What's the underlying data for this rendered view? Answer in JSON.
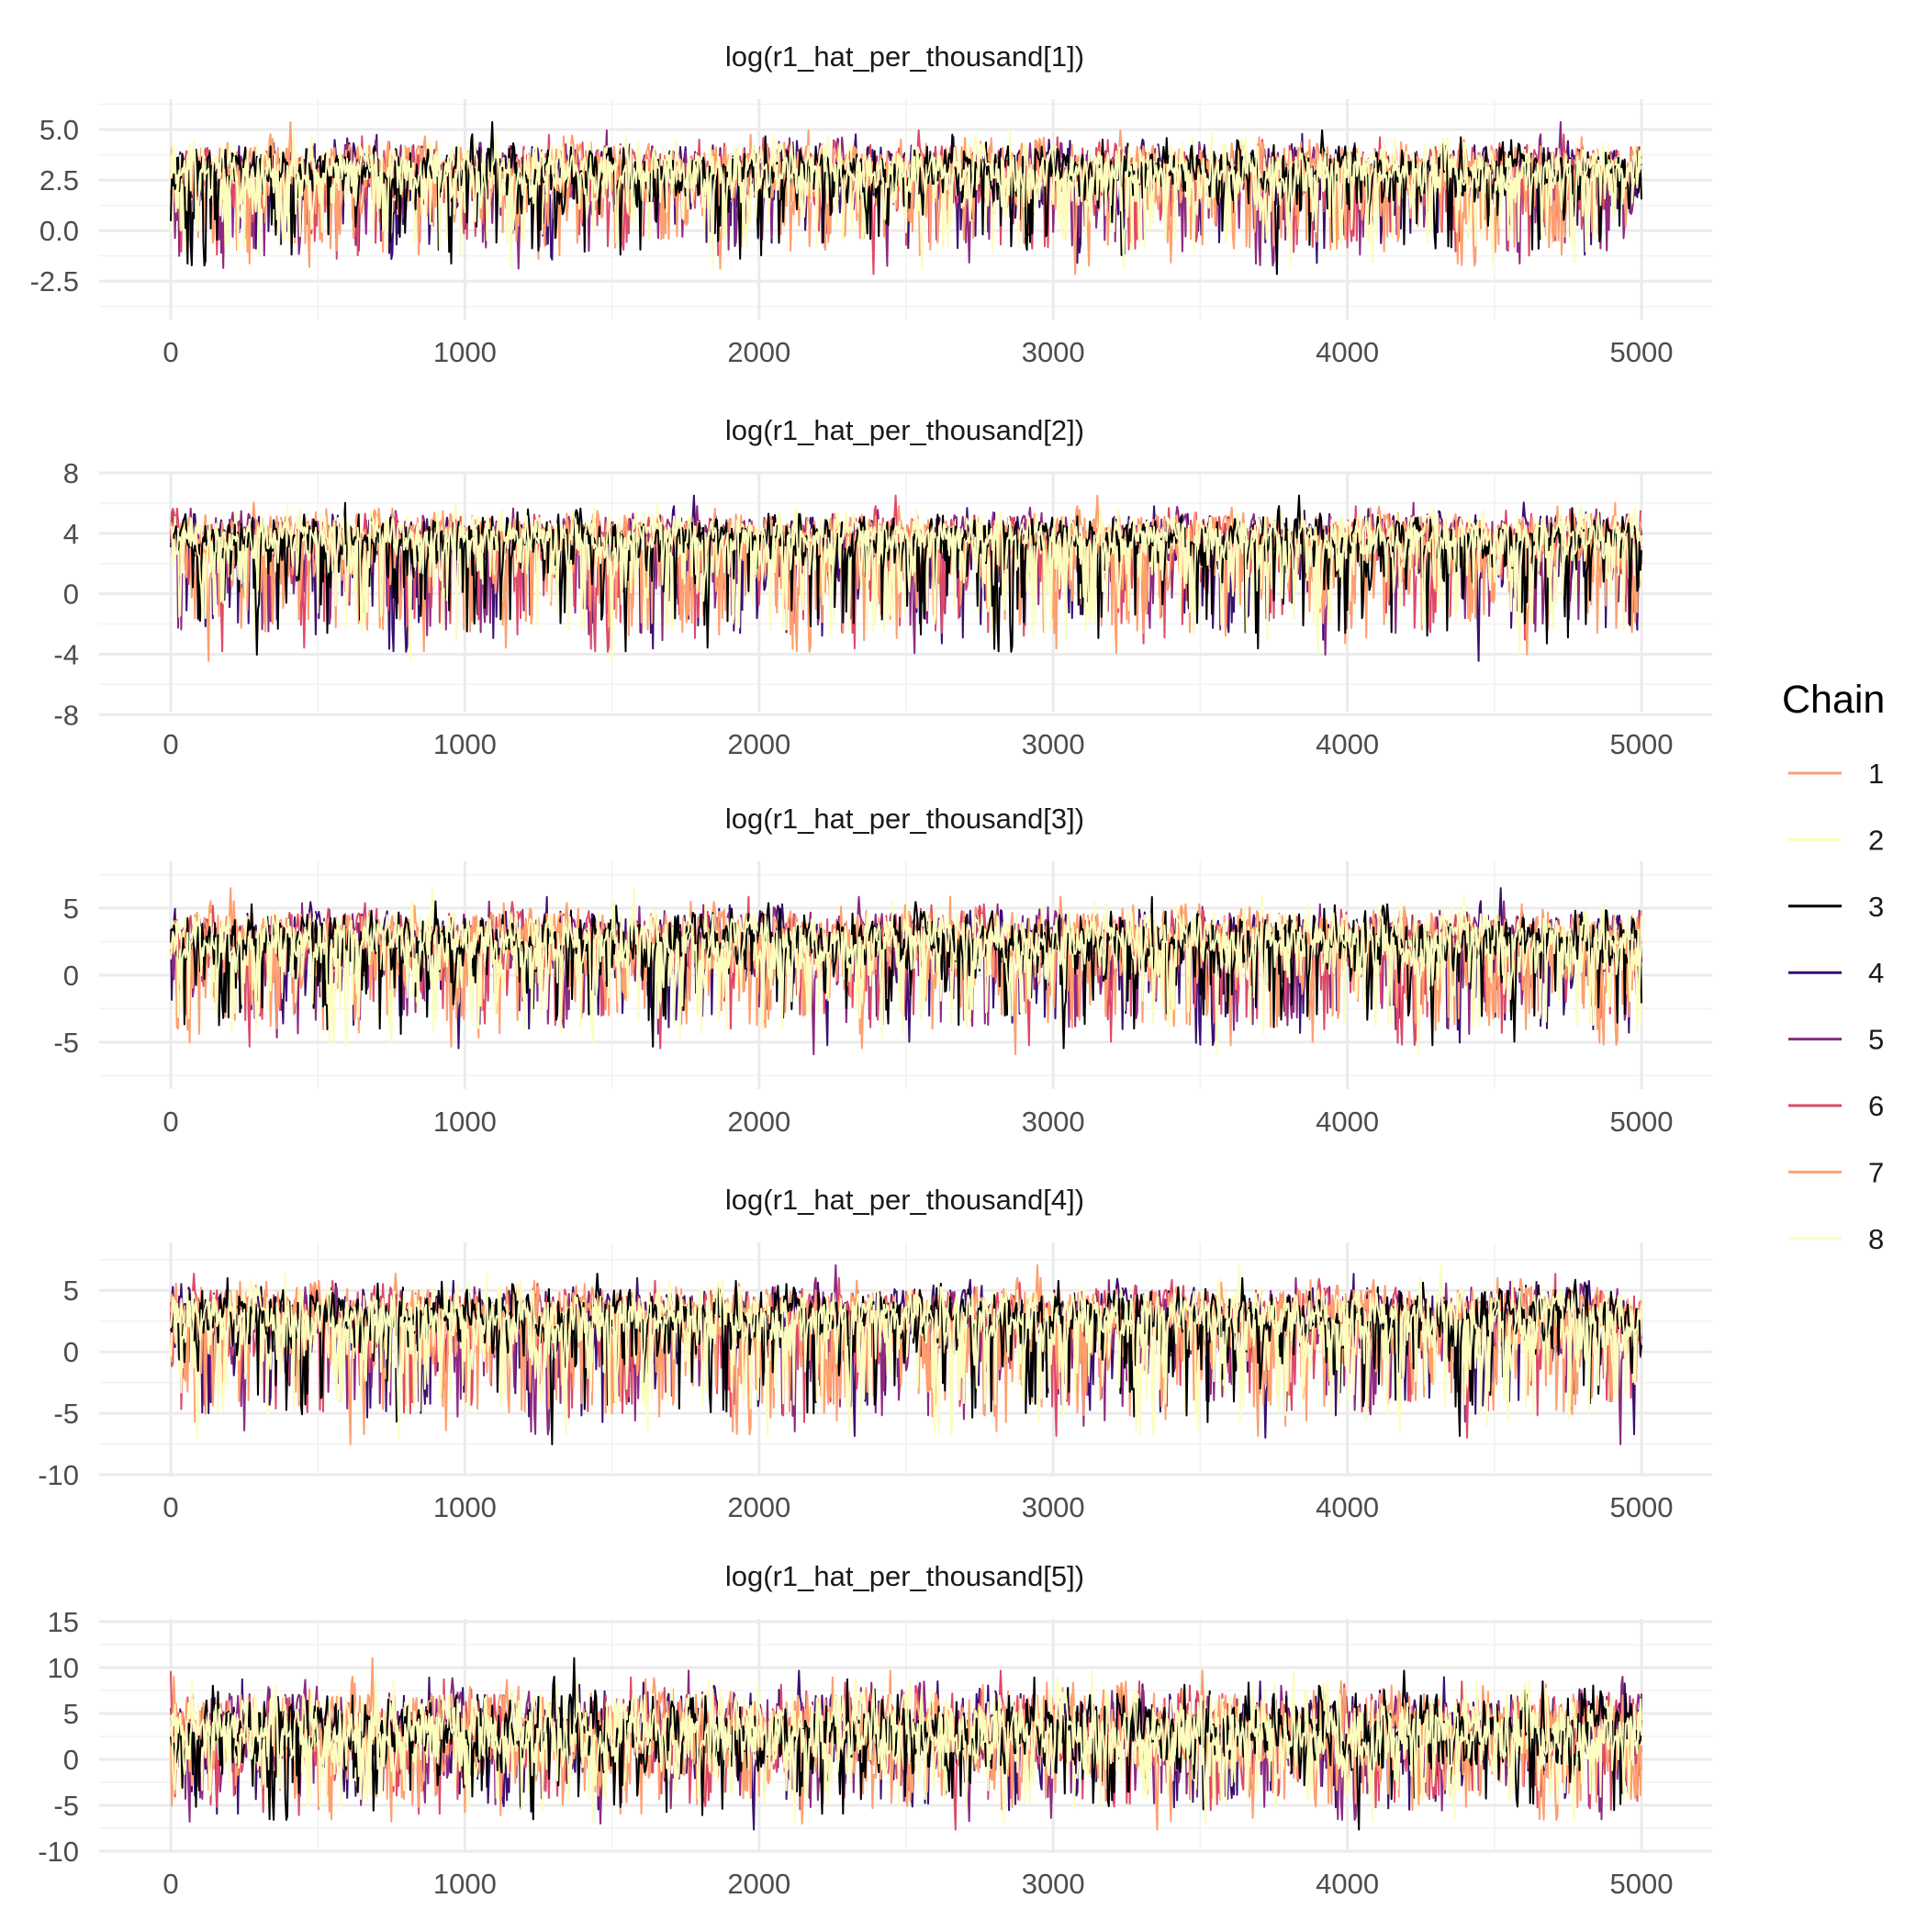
{
  "chart_data": {
    "type": "line",
    "x_ticks": [
      0,
      1000,
      2000,
      3000,
      4000,
      5000
    ],
    "xlim": [
      0,
      5000
    ],
    "iterations": 5000,
    "grid": true,
    "legend": {
      "title": "Chain",
      "placement": "right",
      "entries": [
        {
          "label": "1",
          "color": "#FE9F6D"
        },
        {
          "label": "2",
          "color": "#FCFDBF"
        },
        {
          "label": "3",
          "color": "#000004"
        },
        {
          "label": "4",
          "color": "#3B0F70"
        },
        {
          "label": "5",
          "color": "#8C2981"
        },
        {
          "label": "6",
          "color": "#DE4968"
        },
        {
          "label": "7",
          "color": "#FE9F6D"
        },
        {
          "label": "8",
          "color": "#FCFDBF"
        }
      ]
    },
    "panels": [
      {
        "title": "log(r1_hat_per_thousand[1])",
        "ylim": [
          -4.4,
          6.5
        ],
        "y_ticks": [
          -2.5,
          0.0,
          2.5,
          5.0
        ],
        "y_tick_labels": [
          "-2.5",
          "0.0",
          "2.5",
          "5.0"
        ],
        "center": 3.0,
        "upper": 5.8,
        "lower": -3.1
      },
      {
        "title": "log(r1_hat_per_thousand[2])",
        "ylim": [
          -7.8,
          8.0
        ],
        "y_ticks": [
          -8,
          -4,
          0,
          4,
          8
        ],
        "y_tick_labels": [
          "-8",
          "-4",
          "0",
          "4",
          "8"
        ],
        "center": 3.8,
        "upper": 7.0,
        "lower": -6.0
      },
      {
        "title": "log(r1_hat_per_thousand[3])",
        "ylim": [
          -8.5,
          8.5
        ],
        "y_ticks": [
          -5,
          0,
          5
        ],
        "y_tick_labels": [
          "-5",
          "0",
          "5"
        ],
        "center": 2.7,
        "upper": 7.2,
        "lower": -7.5
      },
      {
        "title": "log(r1_hat_per_thousand[4])",
        "ylim": [
          -10.0,
          8.9
        ],
        "y_ticks": [
          -10,
          -5,
          0,
          5
        ],
        "y_tick_labels": [
          "-10",
          "-5",
          "0",
          "5"
        ],
        "center": 3.0,
        "upper": 7.8,
        "lower": -9.5
      },
      {
        "title": "log(r1_hat_per_thousand[5])",
        "ylim": [
          -10.0,
          15.3
        ],
        "y_ticks": [
          -10,
          -5,
          0,
          5,
          10,
          15
        ],
        "y_tick_labels": [
          "-10",
          "-5",
          "0",
          "5",
          "10",
          "15"
        ],
        "center": 3.0,
        "upper": 12.5,
        "lower": -9.5
      }
    ]
  }
}
